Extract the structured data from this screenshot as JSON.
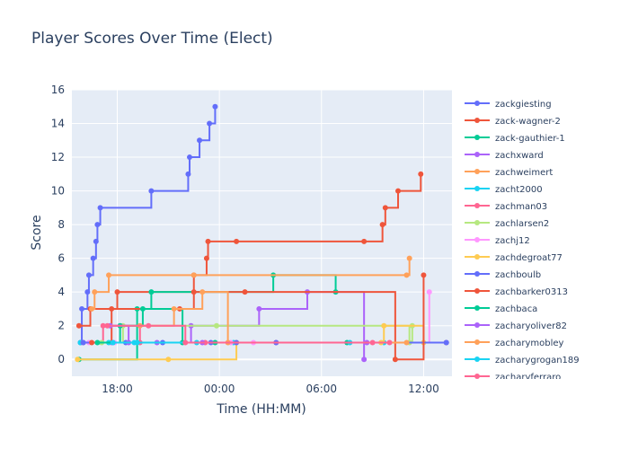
{
  "chart_data": {
    "type": "line",
    "line_shape": "step-after",
    "title": "Player Scores Over Time (Elect)",
    "xlabel": "Time (HH:MM)",
    "ylabel": "Score",
    "xlim": [
      "15:20",
      "13:40 (+1d)"
    ],
    "ylim": [
      -1,
      16
    ],
    "xticks": [
      "18:00",
      "00:00",
      "06:00",
      "12:00"
    ],
    "yticks": [
      0,
      2,
      4,
      6,
      8,
      10,
      12,
      14,
      16
    ],
    "grid": true,
    "legend_position": "right",
    "series": [
      {
        "name": "zackgiesting",
        "color": "#636efa",
        "x": [
          "15:50",
          "15:55",
          "16:15",
          "16:20",
          "16:35",
          "16:45",
          "16:50",
          "17:00",
          "20:00",
          "22:10",
          "22:15",
          "22:50",
          "23:25",
          "23:45"
        ],
        "y": [
          1,
          3,
          4,
          5,
          6,
          7,
          8,
          9,
          10,
          11,
          12,
          13,
          14,
          15
        ]
      },
      {
        "name": "zack-wagner-2",
        "color": "#ef553b",
        "x": [
          "15:45",
          "16:25",
          "18:00",
          "22:30",
          "23:15",
          "23:20",
          "01:00",
          "08:30",
          "09:35",
          "09:45",
          "10:30",
          "11:50"
        ],
        "y": [
          2,
          3,
          4,
          5,
          6,
          7,
          7,
          7,
          8,
          9,
          10,
          11
        ]
      },
      {
        "name": "zack-gauthier-1",
        "color": "#00cc96",
        "x": [
          "15:45",
          "19:10",
          "20:00",
          "03:10",
          "06:50"
        ],
        "y": [
          0,
          3,
          4,
          5,
          4
        ]
      },
      {
        "name": "zachxward",
        "color": "#ab63fa",
        "x": [
          "17:40",
          "22:20",
          "02:20",
          "05:10",
          "08:30"
        ],
        "y": [
          1,
          2,
          3,
          4,
          0
        ]
      },
      {
        "name": "zachweimert",
        "color": "#ffa15a",
        "x": [
          "16:30",
          "16:40",
          "17:30",
          "22:30",
          "11:00",
          "11:10"
        ],
        "y": [
          3,
          4,
          5,
          5,
          5,
          6
        ]
      },
      {
        "name": "zacht2000",
        "color": "#19d3f3",
        "x": [
          "15:50",
          "17:30",
          "19:00",
          "00:50",
          "09:40",
          "13:20"
        ],
        "y": [
          1,
          1,
          1,
          1,
          1,
          1
        ]
      },
      {
        "name": "zachman03",
        "color": "#ff6692",
        "x": [
          "16:00",
          "17:10",
          "19:20",
          "23:10",
          "03:20",
          "09:00",
          "13:20"
        ],
        "y": [
          1,
          2,
          1,
          1,
          1,
          1,
          1
        ]
      },
      {
        "name": "zachlarsen2",
        "color": "#b6e880",
        "x": [
          "17:05",
          "18:20",
          "23:50",
          "11:10",
          "11:20"
        ],
        "y": [
          1,
          2,
          2,
          1,
          2
        ]
      },
      {
        "name": "zachj12",
        "color": "#ff97ff",
        "x": [
          "16:20",
          "17:50",
          "00:40",
          "02:00",
          "12:20"
        ],
        "y": [
          1,
          1,
          1,
          1,
          4
        ]
      },
      {
        "name": "zachdegroat77",
        "color": "#fecb52",
        "x": [
          "15:40",
          "21:00",
          "01:00",
          "09:30",
          "09:40",
          "12:00"
        ],
        "y": [
          0,
          0,
          1,
          1,
          2,
          1
        ]
      },
      {
        "name": "zachboulb",
        "color": "#636efa",
        "x": [
          "16:00",
          "18:30",
          "20:40",
          "23:30",
          "01:00",
          "03:20",
          "13:20"
        ],
        "y": [
          1,
          1,
          1,
          1,
          1,
          1,
          1
        ]
      },
      {
        "name": "zachbarker0313",
        "color": "#ef553b",
        "x": [
          "16:30",
          "17:40",
          "21:40",
          "22:30",
          "01:30",
          "10:20",
          "12:00"
        ],
        "y": [
          1,
          3,
          3,
          4,
          4,
          0,
          5
        ]
      },
      {
        "name": "zachbaca",
        "color": "#00cc96",
        "x": [
          "16:50",
          "18:10",
          "19:30",
          "21:50",
          "23:45",
          "07:30"
        ],
        "y": [
          1,
          2,
          3,
          1,
          1,
          1
        ]
      },
      {
        "name": "zacharyoliver82",
        "color": "#ab63fa",
        "x": [
          "17:35",
          "18:40",
          "20:20",
          "23:00",
          "08:40"
        ],
        "y": [
          2,
          1,
          1,
          1,
          1
        ]
      },
      {
        "name": "zacharymobley",
        "color": "#ffa15a",
        "x": [
          "19:20",
          "21:20",
          "23:00",
          "00:30",
          "11:00"
        ],
        "y": [
          2,
          3,
          4,
          1,
          1
        ]
      },
      {
        "name": "zacharygrogan189",
        "color": "#19d3f3",
        "x": [
          "17:45",
          "19:10",
          "22:40",
          "07:40"
        ],
        "y": [
          1,
          1,
          1,
          1
        ]
      },
      {
        "name": "zacharyferraro",
        "color": "#ff6692",
        "x": [
          "17:25",
          "19:50",
          "22:00",
          "10:00"
        ],
        "y": [
          2,
          2,
          1,
          1
        ]
      }
    ]
  }
}
